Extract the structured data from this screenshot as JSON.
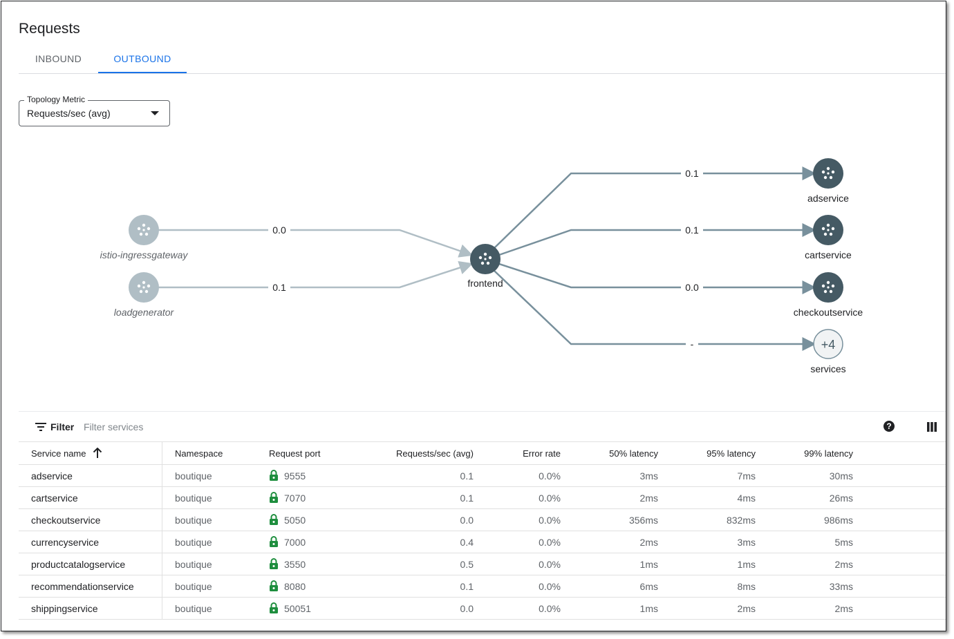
{
  "page": {
    "title": "Requests"
  },
  "tabs": [
    {
      "label": "INBOUND",
      "active": false
    },
    {
      "label": "OUTBOUND",
      "active": true
    }
  ],
  "metric_select": {
    "label": "Topology Metric",
    "value": "Requests/sec (avg)"
  },
  "topology": {
    "inbound_nodes": [
      {
        "name": "istio-ingressgateway",
        "edge_value": "0.0"
      },
      {
        "name": "loadgenerator",
        "edge_value": "0.1"
      }
    ],
    "center_node": {
      "name": "frontend"
    },
    "outbound_nodes": [
      {
        "name": "adservice",
        "edge_value": "0.1"
      },
      {
        "name": "cartservice",
        "edge_value": "0.1"
      },
      {
        "name": "checkoutservice",
        "edge_value": "0.0"
      },
      {
        "name": "services",
        "badge": "+4",
        "edge_value": "-"
      }
    ],
    "colors": {
      "node_dark": "#455a64",
      "node_light": "#b0bec5",
      "edge_dark": "#78909c",
      "edge_light": "#b0bec5"
    }
  },
  "toolbar": {
    "filter_label": "Filter",
    "filter_placeholder": "Filter services",
    "help_icon": "help-icon",
    "columns_icon": "columns-icon"
  },
  "table": {
    "headers": {
      "service": "Service name",
      "namespace": "Namespace",
      "port": "Request port",
      "rps": "Requests/sec (avg)",
      "error": "Error rate",
      "p50": "50% latency",
      "p95": "95% latency",
      "p99": "99% latency"
    },
    "rows": [
      {
        "service": "adservice",
        "namespace": "boutique",
        "port": "9555",
        "rps": "0.1",
        "error": "0.0%",
        "p50": "3ms",
        "p95": "7ms",
        "p99": "30ms"
      },
      {
        "service": "cartservice",
        "namespace": "boutique",
        "port": "7070",
        "rps": "0.1",
        "error": "0.0%",
        "p50": "2ms",
        "p95": "4ms",
        "p99": "26ms"
      },
      {
        "service": "checkoutservice",
        "namespace": "boutique",
        "port": "5050",
        "rps": "0.0",
        "error": "0.0%",
        "p50": "356ms",
        "p95": "832ms",
        "p99": "986ms"
      },
      {
        "service": "currencyservice",
        "namespace": "boutique",
        "port": "7000",
        "rps": "0.4",
        "error": "0.0%",
        "p50": "2ms",
        "p95": "3ms",
        "p99": "5ms"
      },
      {
        "service": "productcatalogservice",
        "namespace": "boutique",
        "port": "3550",
        "rps": "0.5",
        "error": "0.0%",
        "p50": "1ms",
        "p95": "1ms",
        "p99": "2ms"
      },
      {
        "service": "recommendationservice",
        "namespace": "boutique",
        "port": "8080",
        "rps": "0.1",
        "error": "0.0%",
        "p50": "6ms",
        "p95": "8ms",
        "p99": "33ms"
      },
      {
        "service": "shippingservice",
        "namespace": "boutique",
        "port": "50051",
        "rps": "0.0",
        "error": "0.0%",
        "p50": "1ms",
        "p95": "2ms",
        "p99": "2ms"
      }
    ],
    "lock_color": "#1e8e3e"
  }
}
